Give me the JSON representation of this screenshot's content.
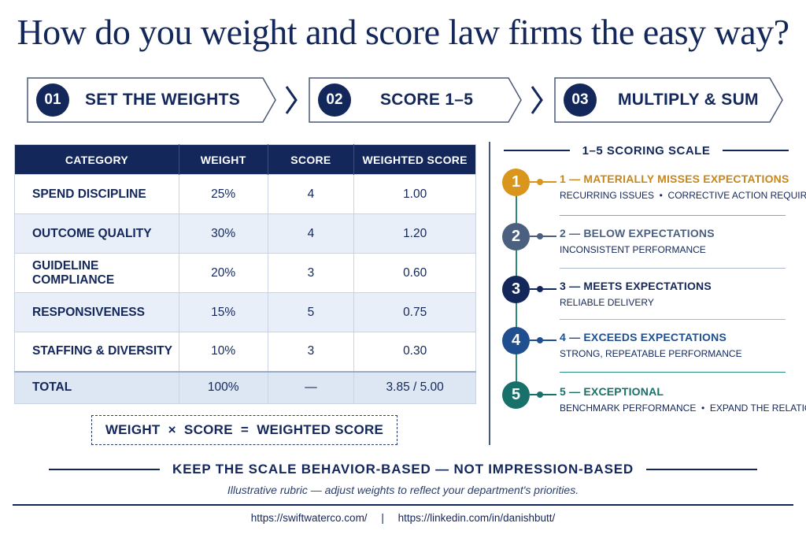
{
  "title": "How do you weight and score law firms the easy way?",
  "steps": [
    {
      "number": "01",
      "label": "SET THE WEIGHTS"
    },
    {
      "number": "02",
      "label": "SCORE 1–5"
    },
    {
      "number": "03",
      "label": "MULTIPLY & SUM"
    }
  ],
  "table": {
    "headers": [
      "CATEGORY",
      "WEIGHT",
      "SCORE",
      "WEIGHTED SCORE"
    ],
    "rows": [
      [
        "SPEND DISCIPLINE",
        "25%",
        "4",
        "1.00"
      ],
      [
        "OUTCOME QUALITY",
        "30%",
        "4",
        "1.20"
      ],
      [
        "GUIDELINE COMPLIANCE",
        "20%",
        "3",
        "0.60"
      ],
      [
        "RESPONSIVENESS",
        "15%",
        "5",
        "0.75"
      ],
      [
        "STAFFING & DIVERSITY",
        "10%",
        "3",
        "0.30"
      ]
    ],
    "total": [
      "TOTAL",
      "100%",
      "—",
      "3.85 / 5.00"
    ]
  },
  "formula": "WEIGHT  ×  SCORE  =  WEIGHTED SCORE",
  "scale": {
    "title": "1–5 SCORING SCALE",
    "levels": [
      {
        "num": "1",
        "name": "1 — MATERIALLY MISSES EXPECTATIONS",
        "desc": "RECURRING ISSUES  •  CORRECTIVE ACTION REQUIRED",
        "color": "#d9951c",
        "text_color": "#c8871a"
      },
      {
        "num": "2",
        "name": "2 — BELOW EXPECTATIONS",
        "desc": "INCONSISTENT PERFORMANCE",
        "color": "#4b5f7f",
        "text_color": "#4b5f7f"
      },
      {
        "num": "3",
        "name": "3 — MEETS EXPECTATIONS",
        "desc": "RELIABLE DELIVERY",
        "color": "#13275a",
        "text_color": "#13275a"
      },
      {
        "num": "4",
        "name": "4 — EXCEEDS EXPECTATIONS",
        "desc": "STRONG, REPEATABLE PERFORMANCE",
        "color": "#1f4f8f",
        "text_color": "#1f4f8f"
      },
      {
        "num": "5",
        "name": "5 — EXCEPTIONAL",
        "desc": "BENCHMARK PERFORMANCE  •  EXPAND THE RELATIONSHIP",
        "color": "#17706a",
        "text_color": "#17706a"
      }
    ]
  },
  "banner": "KEEP THE SCALE BEHAVIOR-BASED — NOT IMPRESSION-BASED",
  "note": "Illustrative rubric — adjust weights to reflect your department's priorities.",
  "links": [
    "https://swiftwaterco.com/",
    "https://linkedin.com/in/danishbutt/"
  ],
  "colors": {
    "navy": "#13275a",
    "teal": "#2b8a7e",
    "amber": "#d9951c"
  }
}
